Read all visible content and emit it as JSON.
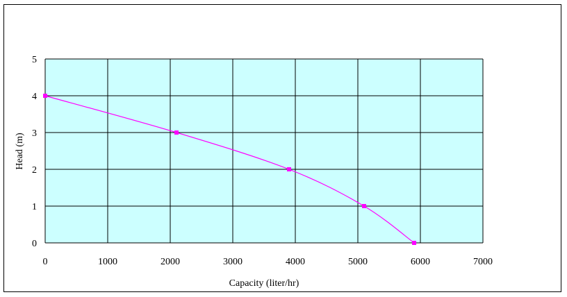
{
  "chart_data": {
    "type": "line",
    "title": "",
    "xlabel": "Capacity (liter/hr)",
    "ylabel": "Head (m)",
    "xlim": [
      0,
      7000
    ],
    "ylim": [
      0,
      5
    ],
    "xticks": [
      "0",
      "1000",
      "2000",
      "3000",
      "4000",
      "5000",
      "6000",
      "7000"
    ],
    "yticks": [
      "0",
      "1",
      "2",
      "3",
      "4",
      "5"
    ],
    "grid": true,
    "legend": "none",
    "plot_background": "#ccffff",
    "series": [
      {
        "color": "#ff00ff",
        "marker": "square",
        "x": [
          0,
          2100,
          3900,
          5100,
          5900
        ],
        "y": [
          4,
          3,
          2,
          1,
          0
        ]
      }
    ]
  }
}
